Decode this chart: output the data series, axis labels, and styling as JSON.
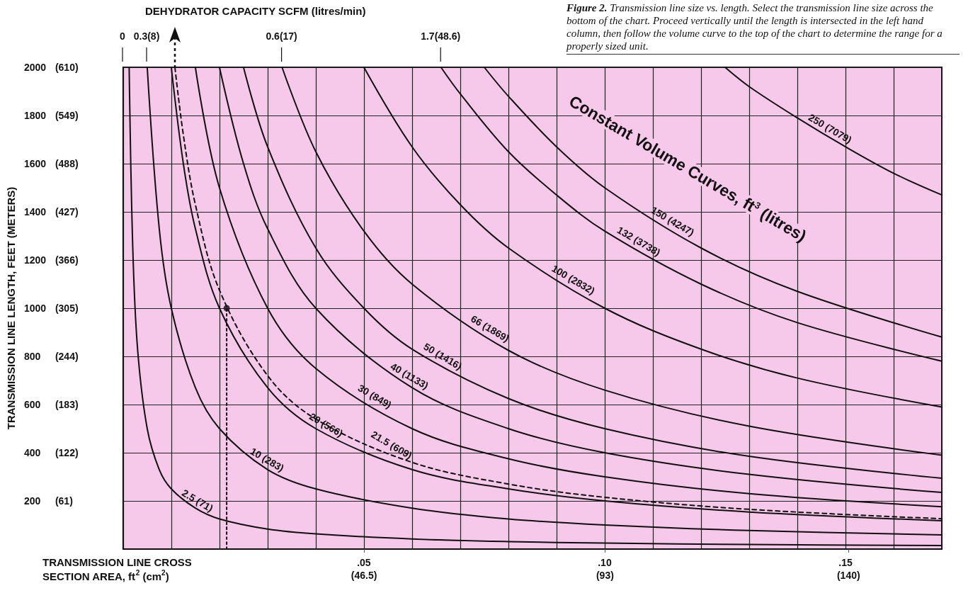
{
  "chart_data": {
    "type": "line",
    "title": "Figure 2. Transmission line size vs. length. Select the transmission line size across the bottom of the chart. Proceed vertically until the length is intersected in the left hand column, then follow the volume curve to the top of the chart to determine the range for a properly sized unit.",
    "xlabel": "TRANSMISSION LINE CROSS\nSECTION AREA, ft$^{2}$ (cm$^{2}$)",
    "ylabel": "TRANSMISSION LINE LENGTH, FEET (METERS)",
    "annotations": [
      "Constant Volume Curves, ft$^{3}$ (litres)",
      "DEHYDRATOR CAPACITY SCFM (litres/min)",
      "0",
      {
        "text": "0.3(8)",
        "x": 0.005,
        "y": 2000
      },
      {
        "text": "0.6(17)",
        "x": 0.033,
        "y": 2000
      },
      {
        "text": "1.7(48.6)",
        "x": 0.066,
        "y": 2000
      }
    ],
    "xlim": [
      0,
      0.17
    ],
    "xticks": [
      {
        "value": 0.01,
        "label": null
      },
      {
        "value": 0.02,
        "label": null
      },
      {
        "value": 0.03,
        "label": null
      },
      {
        "value": 0.04,
        "label": null
      },
      {
        "value": 0.05,
        "label": ".05"
      },
      {
        "value": 0.06,
        "label": null
      },
      {
        "value": 0.07,
        "label": null
      },
      {
        "value": 0.08,
        "label": null
      },
      {
        "value": 0.09,
        "label": null
      },
      {
        "value": 0.1,
        "label": ".10"
      },
      {
        "value": 0.11,
        "label": null
      },
      {
        "value": 0.12,
        "label": null
      },
      {
        "value": 0.13,
        "label": null
      },
      {
        "value": 0.14,
        "label": null
      },
      {
        "value": 0.15,
        "label": ".15"
      },
      {
        "value": 0.16,
        "label": null
      },
      {
        "value": 0.17,
        "label": null
      }
    ],
    "x2lim": [
      0,
      158
    ],
    "x2ticks": [
      {
        "value": 46.5,
        "label": "(46.5)"
      },
      {
        "value": 93,
        "label": "(93)"
      },
      {
        "value": 140,
        "label": "(140)"
      }
    ],
    "ylim": [
      0,
      2000
    ],
    "yticks": [
      200,
      400,
      600,
      800,
      1000,
      1200,
      1400,
      1600,
      1800,
      2000
    ],
    "y2lim": [
      0,
      610
    ],
    "y2ticks": [
      {
        "value": 61,
        "label": "(61)"
      },
      {
        "value": 122,
        "label": "(122)"
      },
      {
        "value": 183,
        "label": "(183)"
      },
      {
        "value": 244,
        "label": "(244)"
      },
      {
        "value": 305,
        "label": "(305)"
      },
      {
        "value": 366,
        "label": "(366)"
      },
      {
        "value": 427,
        "label": "(427)"
      },
      {
        "value": 488,
        "label": "(488)"
      },
      {
        "value": 549,
        "label": "(549)"
      },
      {
        "value": 610,
        "label": "(610)"
      }
    ],
    "grid": true,
    "marker": "none",
    "line_style": "solid",
    "series": [
      {
        "name": "2.5 (71)",
        "color": "#111111",
        "x": [
          0.00125,
          0.002,
          0.003,
          0.005,
          0.0075,
          0.01,
          0.015,
          0.02,
          0.03,
          0.04,
          0.06,
          0.08,
          0.1,
          0.13,
          0.17
        ],
        "values": [
          2000,
          1250,
          830,
          500,
          330,
          250,
          170,
          125,
          83,
          63,
          42,
          31,
          25,
          19,
          15
        ]
      },
      {
        "name": "10 (283)",
        "color": "#111111",
        "x": [
          0.005,
          0.0075,
          0.01,
          0.015,
          0.02,
          0.03,
          0.04,
          0.06,
          0.08,
          0.1,
          0.13,
          0.17
        ],
        "values": [
          2000,
          1330,
          1000,
          670,
          500,
          330,
          250,
          170,
          125,
          100,
          77,
          59
        ]
      },
      {
        "name": "20 (566)",
        "color": "#111111",
        "x": [
          0.01,
          0.0125,
          0.015,
          0.02,
          0.03,
          0.04,
          0.06,
          0.08,
          0.1,
          0.13,
          0.17
        ],
        "values": [
          2000,
          1600,
          1330,
          1000,
          670,
          500,
          330,
          250,
          200,
          154,
          118
        ]
      },
      {
        "name": "21.5 (609)",
        "color": "#111111",
        "line_style": "dashed",
        "x": [
          0.01075,
          0.0125,
          0.015,
          0.02,
          0.03,
          0.04,
          0.06,
          0.08,
          0.1,
          0.13,
          0.17
        ],
        "values": [
          2000,
          1720,
          1430,
          1075,
          720,
          540,
          360,
          270,
          215,
          165,
          126
        ]
      },
      {
        "name": "30 (849)",
        "color": "#111111",
        "x": [
          0.015,
          0.02,
          0.03,
          0.04,
          0.06,
          0.08,
          0.1,
          0.13,
          0.17
        ],
        "values": [
          2000,
          1500,
          1000,
          750,
          500,
          375,
          300,
          230,
          176
        ]
      },
      {
        "name": "40 (1133)",
        "color": "#111111",
        "x": [
          0.02,
          0.025,
          0.03,
          0.04,
          0.06,
          0.08,
          0.1,
          0.13,
          0.17
        ],
        "values": [
          2000,
          1600,
          1330,
          1000,
          670,
          500,
          400,
          310,
          235
        ]
      },
      {
        "name": "50 (1416)",
        "color": "#111111",
        "x": [
          0.025,
          0.03,
          0.04,
          0.05,
          0.06,
          0.08,
          0.1,
          0.13,
          0.17
        ],
        "values": [
          2000,
          1670,
          1250,
          1000,
          830,
          625,
          500,
          385,
          294
        ]
      },
      {
        "name": "66 (1869)",
        "color": "#111111",
        "x": [
          0.033,
          0.04,
          0.05,
          0.06,
          0.08,
          0.1,
          0.13,
          0.17
        ],
        "values": [
          2000,
          1650,
          1320,
          1100,
          825,
          660,
          510,
          390
        ]
      },
      {
        "name": "100 (2832)",
        "color": "#111111",
        "x": [
          0.05,
          0.06,
          0.07,
          0.08,
          0.1,
          0.12,
          0.14,
          0.17
        ],
        "values": [
          2000,
          1670,
          1430,
          1250,
          1000,
          830,
          710,
          590
        ]
      },
      {
        "name": "132 (3738)",
        "color": "#111111",
        "x": [
          0.066,
          0.07,
          0.08,
          0.09,
          0.1,
          0.12,
          0.14,
          0.17
        ],
        "values": [
          2000,
          1890,
          1650,
          1470,
          1320,
          1100,
          940,
          780
        ]
      },
      {
        "name": "150 (4247)",
        "color": "#111111",
        "x": [
          0.075,
          0.08,
          0.09,
          0.1,
          0.12,
          0.14,
          0.17
        ],
        "values": [
          2000,
          1880,
          1670,
          1500,
          1250,
          1070,
          880
        ]
      },
      {
        "name": "250 (7079)",
        "color": "#111111",
        "x": [
          0.125,
          0.13,
          0.14,
          0.15,
          0.16,
          0.17
        ],
        "values": [
          2000,
          1920,
          1790,
          1670,
          1560,
          1470
        ]
      },
      {
        "color": "#111111",
        "line_style": "dotted",
        "x": [
          0.0215,
          0.0215
        ],
        "values": [
          0,
          1000
        ]
      },
      {
        "type": "scatter",
        "marker": "circle",
        "color": "#111111",
        "x": [
          0.0215
        ],
        "values": [
          1000
        ]
      }
    ]
  }
}
